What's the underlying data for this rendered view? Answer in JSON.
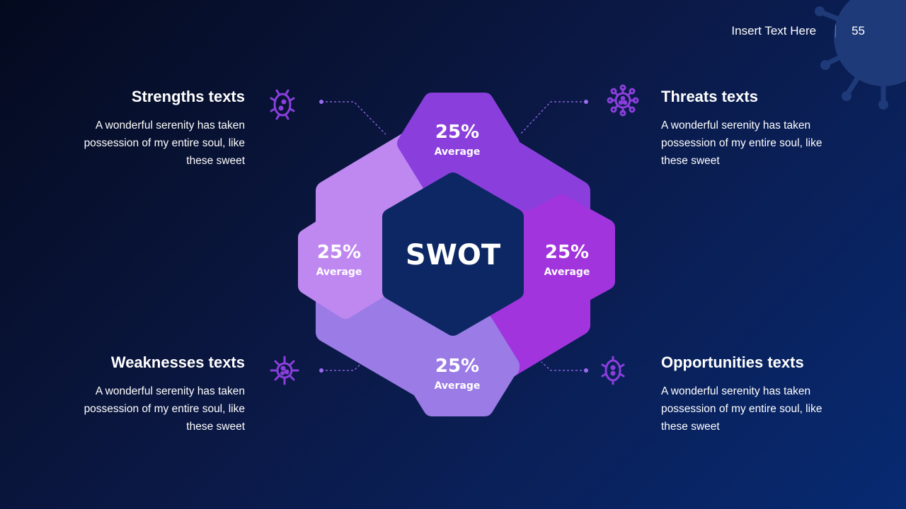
{
  "header": {
    "title": "Insert Text Here",
    "page_number": "55"
  },
  "center": {
    "label": "SWOT"
  },
  "segments": [
    {
      "id": "top",
      "value": "25%",
      "label": "Average",
      "color": "#8a3fdc"
    },
    {
      "id": "left",
      "value": "25%",
      "label": "Average",
      "color": "#bf88f0"
    },
    {
      "id": "right",
      "value": "25%",
      "label": "Average",
      "color": "#a134dd"
    },
    {
      "id": "bottom",
      "value": "25%",
      "label": "Average",
      "color": "#9b7be5"
    }
  ],
  "blocks": {
    "strengths": {
      "title": "Strengths texts",
      "body": "A wonderful serenity has taken possession of my entire soul, like these sweet",
      "icon": "germ-icon"
    },
    "threats": {
      "title": "Threats texts",
      "body": "A wonderful serenity has taken possession of my entire soul, like these sweet",
      "icon": "virus-icon"
    },
    "weaknesses": {
      "title": "Weaknesses texts",
      "body": "A wonderful serenity has taken possession of my entire soul, like these sweet",
      "icon": "virus-icon"
    },
    "opportunities": {
      "title": "Opportunities texts",
      "body": "A wonderful serenity has taken possession of my entire soul, like these sweet",
      "icon": "germ-icon"
    }
  },
  "colors": {
    "background": "#0b1844",
    "center": "#0c2763",
    "icon": "#8a3fdc",
    "connector": "#9b6cf0"
  }
}
